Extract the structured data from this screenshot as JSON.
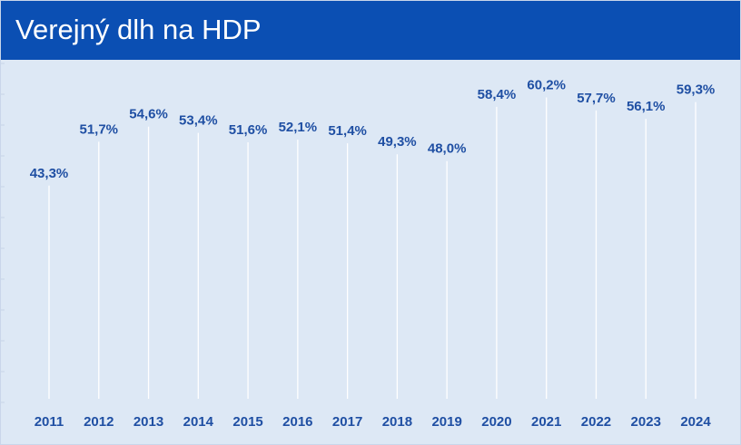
{
  "header": {
    "title": "Verejný dlh na HDP"
  },
  "colors": {
    "header_bg": "#0b4fb3",
    "plot_bg": "#dde8f5",
    "label": "#1f4fa3",
    "grid": "#ffffff"
  },
  "chart_data": {
    "type": "bar",
    "title": "Verejný dlh na HDP",
    "xlabel": "",
    "ylabel": "",
    "categories": [
      "2011",
      "2012",
      "2013",
      "2014",
      "2015",
      "2016",
      "2017",
      "2018",
      "2019",
      "2020",
      "2021",
      "2022",
      "2023",
      "2024"
    ],
    "values": [
      43.3,
      51.7,
      54.6,
      53.4,
      51.6,
      52.1,
      51.4,
      49.3,
      48.0,
      58.4,
      60.2,
      57.7,
      56.1,
      59.3
    ],
    "value_labels": [
      "43,3%",
      "51,7%",
      "54,6%",
      "53,4%",
      "51,6%",
      "52,1%",
      "51,4%",
      "49,3%",
      "48,0%",
      "58,4%",
      "60,2%",
      "57,7%",
      "56,1%",
      "59,3%"
    ],
    "ylim": [
      0,
      65
    ],
    "grid": false,
    "legend": "none"
  }
}
